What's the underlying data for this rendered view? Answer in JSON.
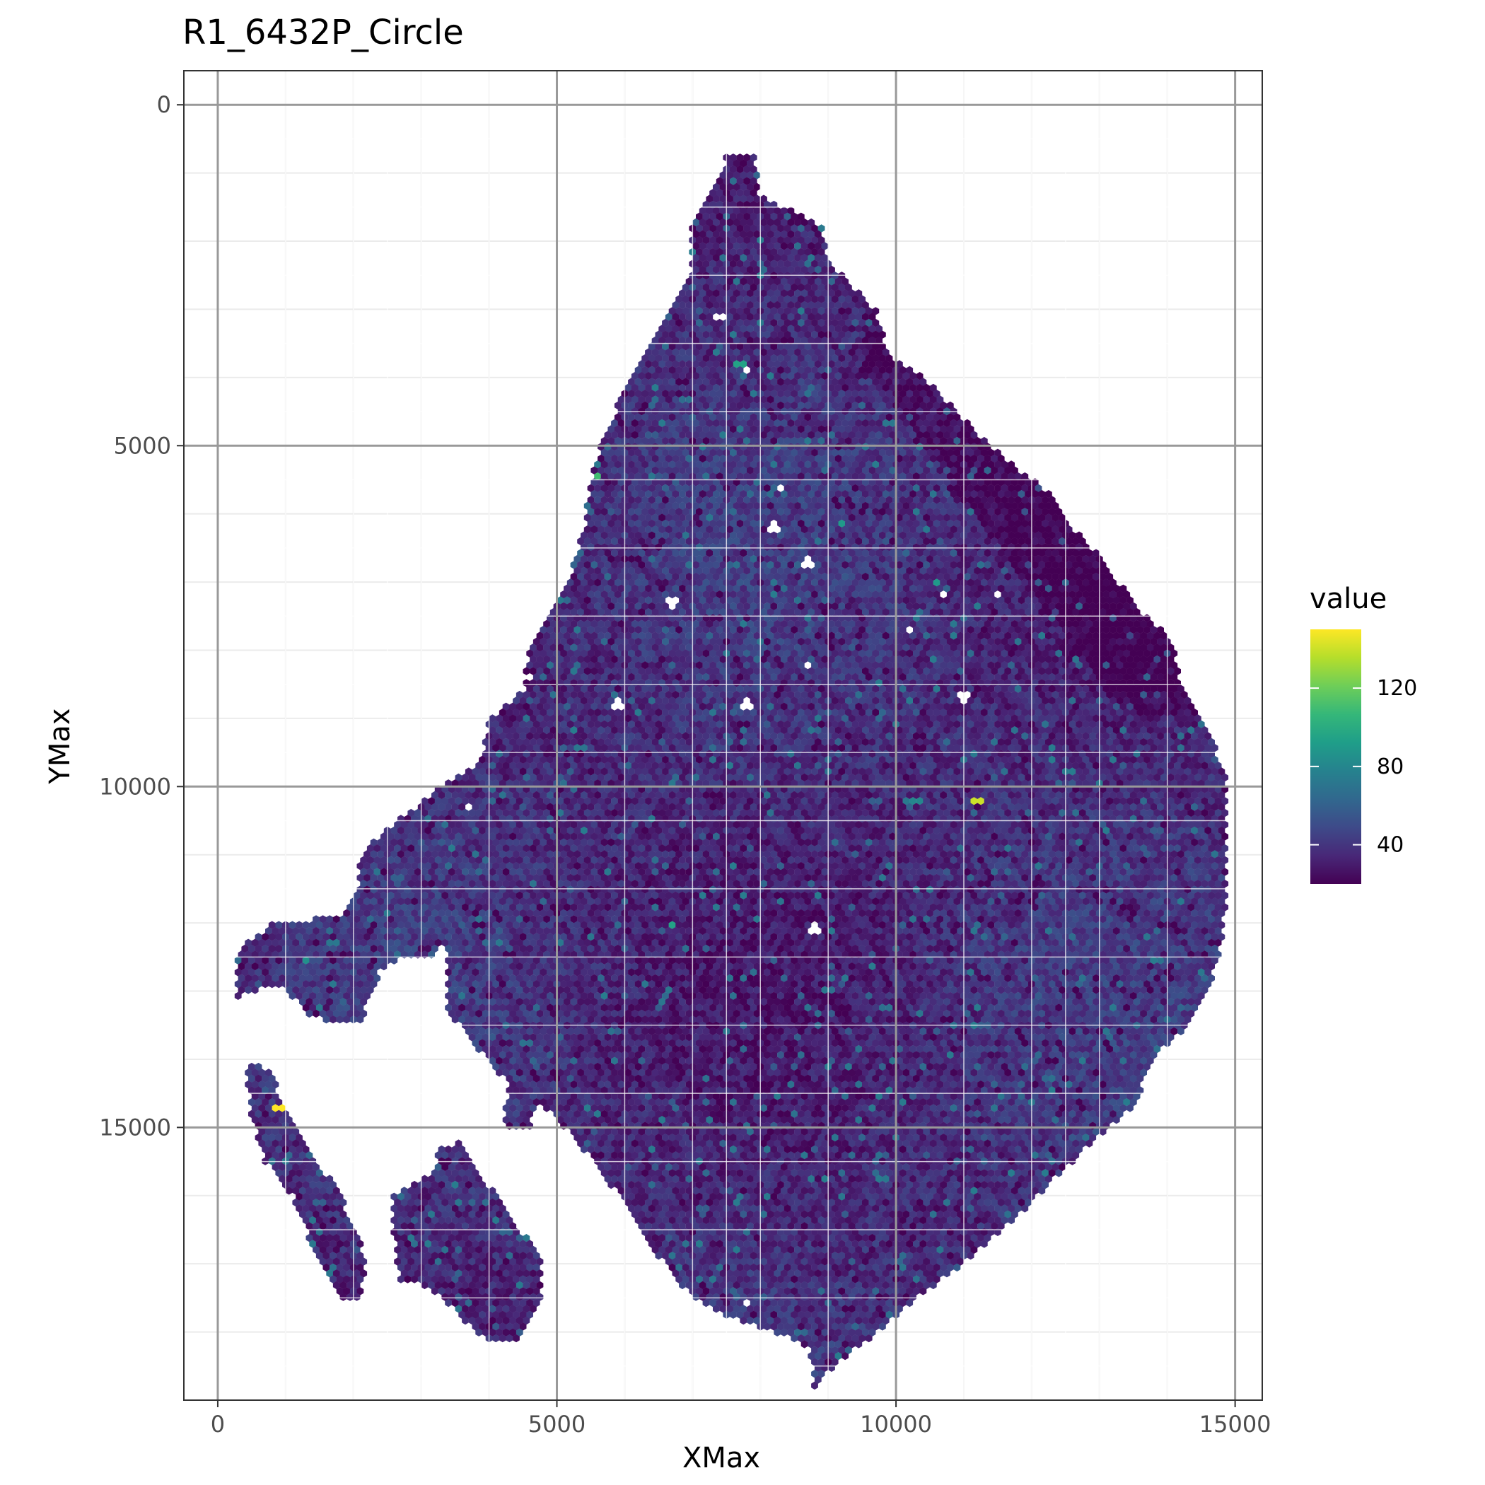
{
  "chart_data": {
    "type": "heatmap",
    "subtype": "hexagonal spatial map",
    "title": "R1_6432P_Circle",
    "xlabel": "XMax",
    "ylabel": "YMax",
    "xlim": [
      -500,
      15400
    ],
    "ylim": [
      19000,
      -500
    ],
    "y_reversed": true,
    "x_ticks": [
      0,
      5000,
      10000,
      15000
    ],
    "x_tick_labels": [
      "0",
      "5000",
      "10000",
      "15000"
    ],
    "y_ticks": [
      0,
      5000,
      10000,
      15000
    ],
    "y_tick_labels": [
      "0",
      "5000",
      "10000",
      "15000"
    ],
    "grid": true,
    "theme": "bw",
    "legend": {
      "title": "value",
      "position": "right",
      "colormap": "viridis",
      "range": [
        20,
        150
      ],
      "ticks": [
        40,
        80,
        120
      ],
      "tick_labels": [
        "40",
        "80",
        "120"
      ],
      "colors": [
        "#440154",
        "#482878",
        "#3e4a89",
        "#31688e",
        "#26828e",
        "#1f9e89",
        "#35b779",
        "#6ece58",
        "#b5de2b",
        "#fde725"
      ]
    },
    "typical_value_range": [
      20,
      60
    ],
    "tissue_outline": {
      "main_region": [
        [
          7500,
          700
        ],
        [
          7900,
          700
        ],
        [
          8000,
          1300
        ],
        [
          8900,
          1800
        ],
        [
          9000,
          2300
        ],
        [
          9700,
          3000
        ],
        [
          9900,
          3700
        ],
        [
          10300,
          3900
        ],
        [
          11100,
          4700
        ],
        [
          11600,
          5200
        ],
        [
          12300,
          5700
        ],
        [
          12600,
          6200
        ],
        [
          13000,
          6600
        ],
        [
          13500,
          7300
        ],
        [
          14100,
          7900
        ],
        [
          14200,
          8400
        ],
        [
          14600,
          9200
        ],
        [
          14900,
          9900
        ],
        [
          14900,
          10600
        ],
        [
          14900,
          11400
        ],
        [
          14800,
          12300
        ],
        [
          14600,
          13000
        ],
        [
          14300,
          13500
        ],
        [
          13800,
          14000
        ],
        [
          13500,
          14700
        ],
        [
          12900,
          15200
        ],
        [
          12300,
          15800
        ],
        [
          11700,
          16400
        ],
        [
          11000,
          17000
        ],
        [
          10300,
          17500
        ],
        [
          9600,
          18100
        ],
        [
          9100,
          18500
        ],
        [
          8800,
          18800
        ],
        [
          8700,
          18200
        ],
        [
          7600,
          17800
        ],
        [
          7000,
          17500
        ],
        [
          6500,
          16900
        ],
        [
          6000,
          16100
        ],
        [
          5300,
          15200
        ],
        [
          4800,
          14700
        ],
        [
          4300,
          14400
        ],
        [
          3800,
          13800
        ],
        [
          3400,
          13300
        ],
        [
          3400,
          12300
        ],
        [
          3100,
          12500
        ],
        [
          2700,
          12500
        ],
        [
          2400,
          12700
        ],
        [
          2100,
          13500
        ],
        [
          1400,
          13400
        ],
        [
          900,
          12900
        ],
        [
          300,
          13100
        ],
        [
          300,
          12400
        ],
        [
          800,
          12000
        ],
        [
          1800,
          11900
        ],
        [
          2100,
          11500
        ],
        [
          2100,
          11000
        ],
        [
          2500,
          10600
        ],
        [
          2900,
          10300
        ],
        [
          3300,
          10000
        ],
        [
          3900,
          9600
        ],
        [
          4000,
          9000
        ],
        [
          4500,
          8600
        ],
        [
          4600,
          7900
        ],
        [
          4900,
          7400
        ],
        [
          5200,
          6900
        ],
        [
          5400,
          6200
        ],
        [
          5500,
          5500
        ],
        [
          5700,
          4800
        ],
        [
          6000,
          4200
        ],
        [
          6300,
          3600
        ],
        [
          6700,
          3000
        ],
        [
          7000,
          2500
        ],
        [
          7000,
          1800
        ],
        [
          7400,
          1100
        ]
      ],
      "left_strip": [
        [
          400,
          14000
        ],
        [
          800,
          14200
        ],
        [
          1000,
          14800
        ],
        [
          1300,
          15300
        ],
        [
          1700,
          15800
        ],
        [
          2000,
          16400
        ],
        [
          2200,
          17000
        ],
        [
          2100,
          17500
        ],
        [
          1800,
          17500
        ],
        [
          1400,
          16800
        ],
        [
          1100,
          16000
        ],
        [
          700,
          15500
        ],
        [
          500,
          14900
        ]
      ],
      "bottom_lobe": [
        [
          3600,
          15200
        ],
        [
          3900,
          15700
        ],
        [
          4300,
          16300
        ],
        [
          4800,
          16900
        ],
        [
          4800,
          17500
        ],
        [
          4400,
          18100
        ],
        [
          4200,
          18200
        ],
        [
          3800,
          18000
        ],
        [
          3300,
          17500
        ],
        [
          3000,
          17300
        ],
        [
          2700,
          17300
        ],
        [
          2600,
          16700
        ],
        [
          2600,
          16000
        ],
        [
          3100,
          15700
        ],
        [
          3300,
          15300
        ]
      ],
      "small_patch": [
        [
          4300,
          14300
        ],
        [
          4700,
          14500
        ],
        [
          4600,
          15000
        ],
        [
          4200,
          15000
        ]
      ]
    },
    "hole_spots": [
      [
        7800,
        3900
      ],
      [
        5900,
        4100
      ],
      [
        8300,
        5600
      ],
      [
        8200,
        6200
      ],
      [
        8700,
        6700
      ],
      [
        6700,
        7300
      ],
      [
        10700,
        7200
      ],
      [
        11500,
        7200
      ],
      [
        10200,
        7700
      ],
      [
        8700,
        8200
      ],
      [
        4600,
        8400
      ],
      [
        11000,
        8700
      ],
      [
        5900,
        8800
      ],
      [
        7800,
        8800
      ],
      [
        3700,
        10300
      ],
      [
        8800,
        12100
      ],
      [
        7800,
        17600
      ],
      [
        7400,
        3100
      ],
      [
        2500,
        14000
      ]
    ],
    "highlight_spots": [
      {
        "x": 900,
        "y": 14700,
        "value": 150
      },
      {
        "x": 11200,
        "y": 10200,
        "value": 140
      },
      {
        "x": 6600,
        "y": 2800,
        "value": 120
      },
      {
        "x": 5400,
        "y": 4700,
        "value": 115
      },
      {
        "x": 5600,
        "y": 5400,
        "value": 110
      },
      {
        "x": 7700,
        "y": 3800,
        "value": 95
      },
      {
        "x": 6700,
        "y": 12000,
        "value": 95
      },
      {
        "x": 9200,
        "y": 6100,
        "value": 90
      },
      {
        "x": 10600,
        "y": 7000,
        "value": 90
      },
      {
        "x": 1300,
        "y": 12600,
        "value": 85
      },
      {
        "x": 10300,
        "y": 10200,
        "value": 80
      },
      {
        "x": 12200,
        "y": 15700,
        "value": 75
      },
      {
        "x": 5700,
        "y": 13100,
        "value": 75
      },
      {
        "x": 6300,
        "y": 17800,
        "value": 80
      }
    ]
  }
}
